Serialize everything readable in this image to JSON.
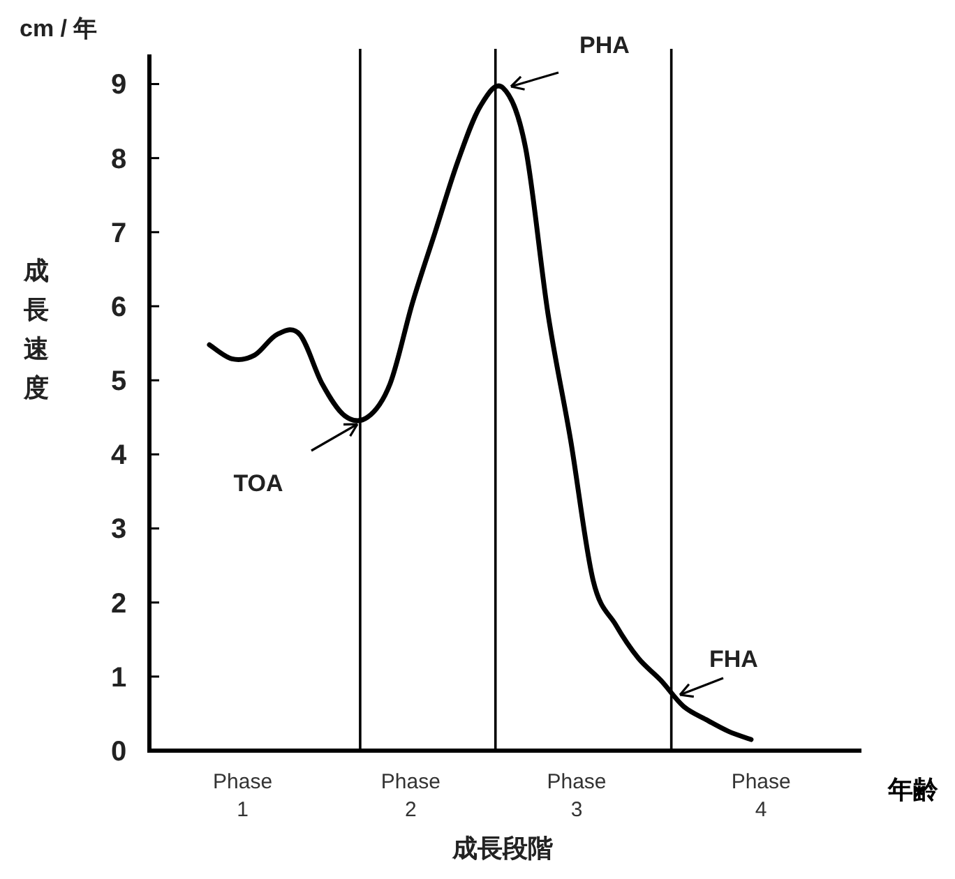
{
  "chart_data": {
    "type": "line",
    "ylabel": "成長速度",
    "xlabel": "成長段階",
    "annotations": [
      "cm / 年",
      "年齢",
      "Phase 1",
      "Phase 2",
      "Phase 3",
      "Phase 4",
      "TOA",
      "PHA",
      "FHA"
    ],
    "categories": [
      null,
      null,
      null,
      null,
      null,
      null,
      null,
      null,
      null,
      null,
      null,
      null,
      null,
      null,
      null,
      null,
      null,
      null,
      null,
      null,
      null,
      null,
      null,
      null,
      null
    ],
    "ylim": [
      0,
      9.4
    ],
    "yticks": [
      0,
      1,
      2,
      3,
      4,
      5,
      6,
      7,
      8,
      9
    ],
    "series": [
      {
        "color": "#000000",
        "values": [
          5.48,
          5.29,
          5.34,
          5.62,
          5.62,
          4.95,
          4.52,
          4.5,
          4.95,
          6.05,
          7.0,
          7.95,
          8.7,
          8.95,
          8.15,
          5.9,
          4.2,
          2.3,
          1.7,
          1.25,
          0.95,
          0.6,
          0.42,
          0.26,
          0.15
        ]
      }
    ],
    "grid": false,
    "marker": "none",
    "line_style": "solid"
  }
}
